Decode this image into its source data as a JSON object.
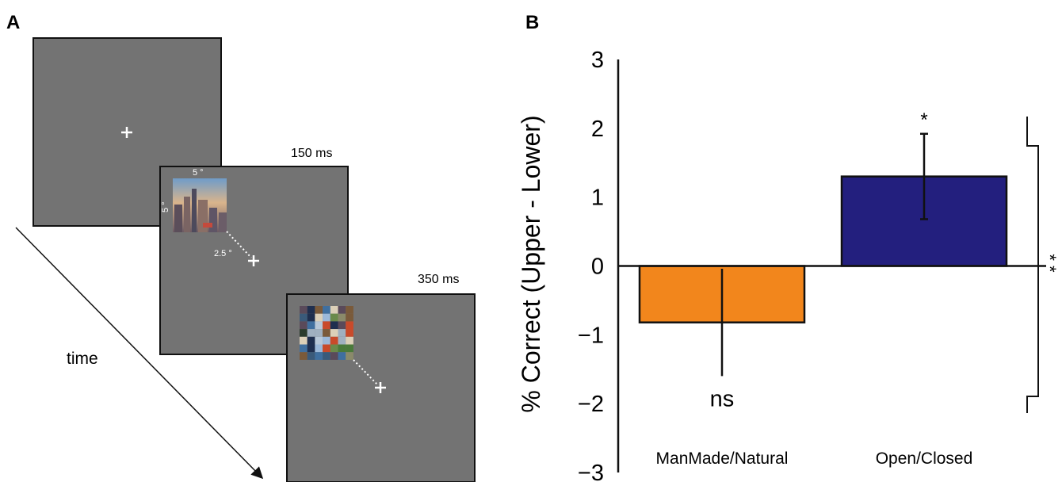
{
  "panel_a": {
    "letter": "A",
    "screen1_label": "",
    "screen2_label": "150 ms",
    "screen3_label": "350 ms",
    "size_label_top": "5 °",
    "size_label_side": "5 °",
    "eccentricity_label": "2.5 °",
    "time_label": "time",
    "screen_color": "#737373"
  },
  "chart_data": {
    "panel_letter": "B",
    "type": "bar",
    "categories": [
      "ManMade/Natural",
      "Open/Closed"
    ],
    "values": [
      -0.82,
      1.3
    ],
    "errors": [
      0.78,
      0.62
    ],
    "colors": [
      "#f2861c",
      "#231f7e"
    ],
    "bar_annotations": [
      "ns",
      "*"
    ],
    "ylabel": "% Correct (Upper - Lower)",
    "ylim": [
      -3,
      3
    ],
    "yticks": [
      "3",
      "2",
      "1",
      "0",
      "−1",
      "−2",
      "−3"
    ],
    "bracket_label": "* *",
    "grid": false
  }
}
